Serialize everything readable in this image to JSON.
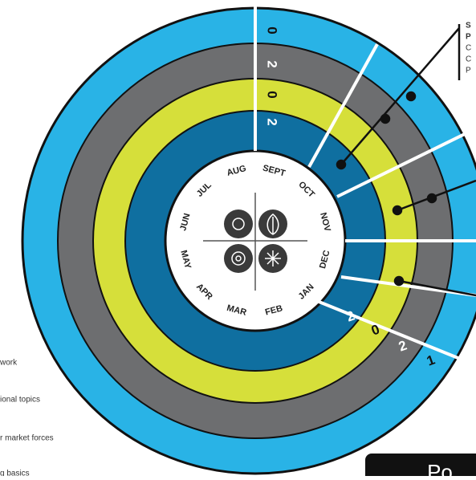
{
  "months": [
    "AUG",
    "SEPT",
    "OCT",
    "NOV",
    "DEC",
    "JAN",
    "FEB",
    "MAR",
    "APR",
    "MAY",
    "JUN",
    "JUL"
  ],
  "year_top": [
    "0",
    "2",
    "0",
    "2"
  ],
  "year_bottom": [
    "2",
    "0",
    "2",
    "1"
  ],
  "side_labels": [
    "work",
    "ional topics",
    "r market forces",
    "g basics"
  ],
  "note_letters": [
    "S",
    "P",
    "C",
    "C",
    "P"
  ],
  "box_label": "Po"
}
